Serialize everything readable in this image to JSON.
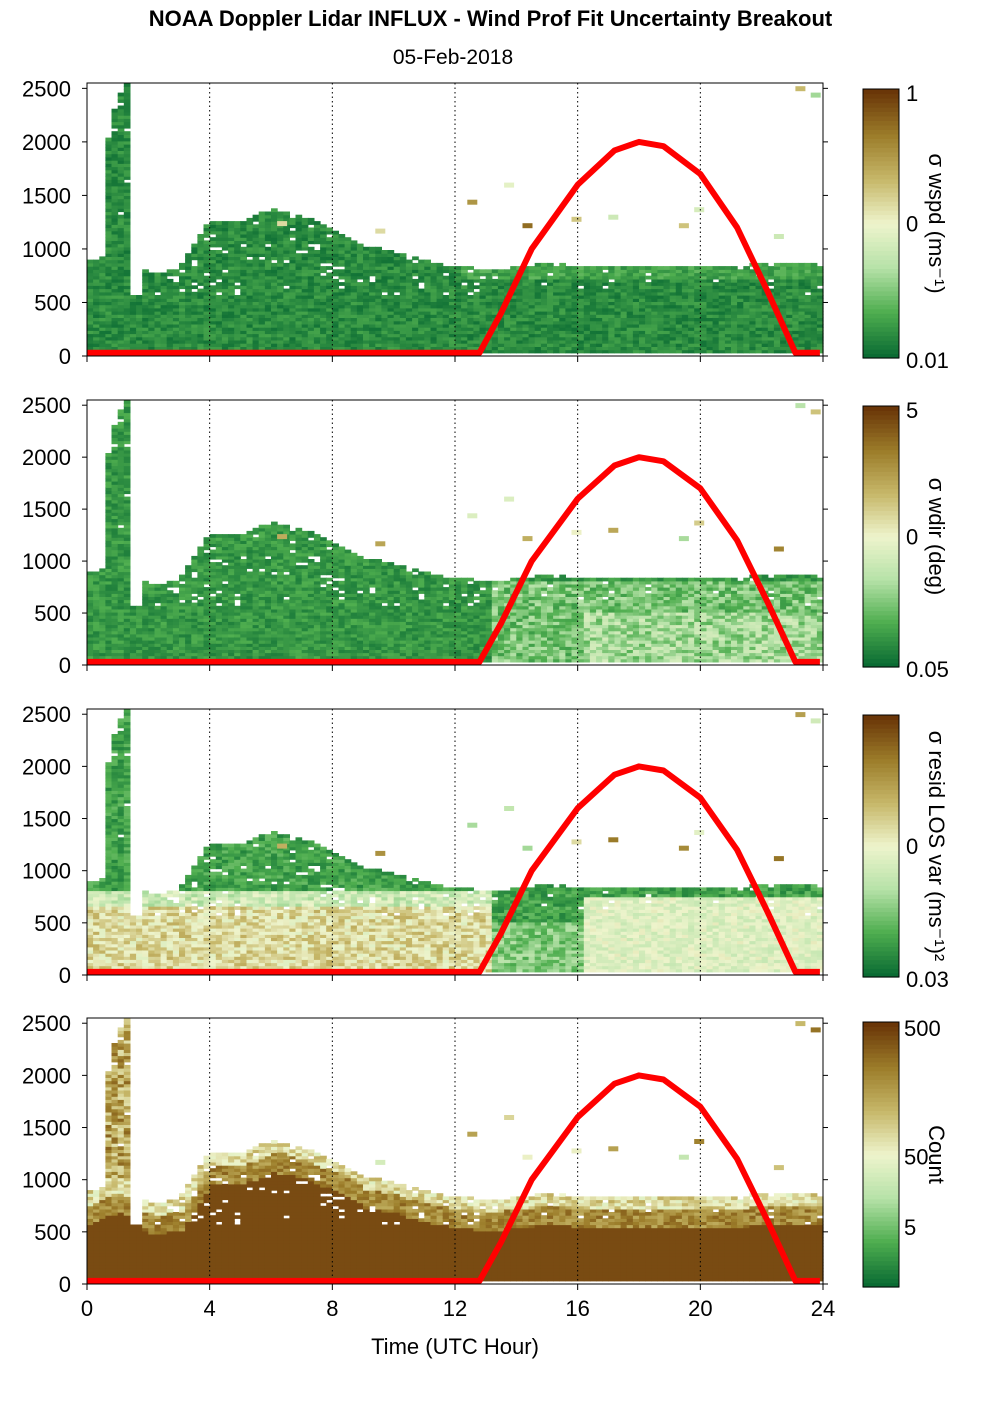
{
  "title": "NOAA Doppler Lidar INFLUX - Wind Prof Fit Uncertainty Breakout",
  "subtitle": "05-Feb-2018",
  "colors": {
    "dark_green": "#0a6b33",
    "mid_green": "#4fae4f",
    "light_green": "#b6e2a8",
    "pale": "#eef4cc",
    "khaki": "#c7b86a",
    "olive": "#9c7d2a",
    "dark_brown": "#6a3608",
    "overlay": "#ff0000"
  },
  "chart_data": [
    {
      "type": "heatmap",
      "panel": "wspd",
      "colorbar_label": "σ wspd (ms⁻¹)",
      "colorbar_ticks": [
        "1",
        "0",
        "0.01"
      ],
      "ylim": [
        0,
        2550
      ],
      "yticks": [
        0,
        500,
        1000,
        1500,
        2000,
        2500
      ],
      "xlim": [
        0,
        24
      ],
      "xticks": [
        0,
        4,
        8,
        12,
        16,
        20,
        24
      ]
    },
    {
      "type": "heatmap",
      "panel": "wdir",
      "colorbar_label": "σ wdir (deg)",
      "colorbar_ticks": [
        "5",
        "0",
        "0.05"
      ],
      "ylim": [
        0,
        2550
      ],
      "yticks": [
        0,
        500,
        1000,
        1500,
        2000,
        2500
      ],
      "xlim": [
        0,
        24
      ],
      "xticks": [
        0,
        4,
        8,
        12,
        16,
        20,
        24
      ]
    },
    {
      "type": "heatmap",
      "panel": "resid",
      "colorbar_label": "σ resid LOS var (ms⁻¹)²",
      "colorbar_ticks": [
        "0",
        "0.03"
      ],
      "ylim": [
        0,
        2550
      ],
      "yticks": [
        0,
        500,
        1000,
        1500,
        2000,
        2500
      ],
      "xlim": [
        0,
        24
      ],
      "xticks": [
        0,
        4,
        8,
        12,
        16,
        20,
        24
      ]
    },
    {
      "type": "heatmap",
      "panel": "count",
      "colorbar_label": "Count",
      "colorbar_ticks": [
        "500",
        "50",
        "5"
      ],
      "ylim": [
        0,
        2550
      ],
      "yticks": [
        0,
        500,
        1000,
        1500,
        2000,
        2500
      ],
      "xlim": [
        0,
        24
      ],
      "xticks": [
        0,
        4,
        8,
        12,
        16,
        20,
        24
      ],
      "xlabel": "Time (UTC Hour)",
      "xticklabels": [
        "0",
        "4",
        "8",
        "12",
        "16",
        "20",
        "24"
      ]
    }
  ],
  "overlay_curve": {
    "color": "#ff0000",
    "points": [
      [
        0,
        30
      ],
      [
        12.8,
        30
      ],
      [
        13.5,
        400
      ],
      [
        14.5,
        1000
      ],
      [
        16,
        1600
      ],
      [
        17.2,
        1920
      ],
      [
        18,
        2000
      ],
      [
        18.8,
        1960
      ],
      [
        20,
        1700
      ],
      [
        21.2,
        1200
      ],
      [
        22.2,
        600
      ],
      [
        23.1,
        30
      ],
      [
        23.9,
        30
      ]
    ]
  },
  "data_extent": {
    "mixed_layer_top": [
      [
        0,
        860
      ],
      [
        1,
        980
      ],
      [
        2,
        760
      ],
      [
        3,
        800
      ],
      [
        4,
        1250
      ],
      [
        5,
        1240
      ],
      [
        6,
        1360
      ],
      [
        7,
        1300
      ],
      [
        8,
        1180
      ],
      [
        9,
        1020
      ],
      [
        10,
        960
      ],
      [
        11,
        880
      ],
      [
        12,
        820
      ],
      [
        13,
        800
      ],
      [
        14,
        820
      ],
      [
        15,
        860
      ],
      [
        16,
        830
      ],
      [
        17,
        830
      ],
      [
        18,
        830
      ],
      [
        19,
        840
      ],
      [
        20,
        840
      ],
      [
        21,
        820
      ],
      [
        22,
        860
      ],
      [
        23,
        860
      ],
      [
        23.7,
        860
      ]
    ],
    "early_tower": [
      [
        0.5,
        1900
      ],
      [
        0.8,
        2300
      ],
      [
        1.1,
        2530
      ]
    ]
  }
}
